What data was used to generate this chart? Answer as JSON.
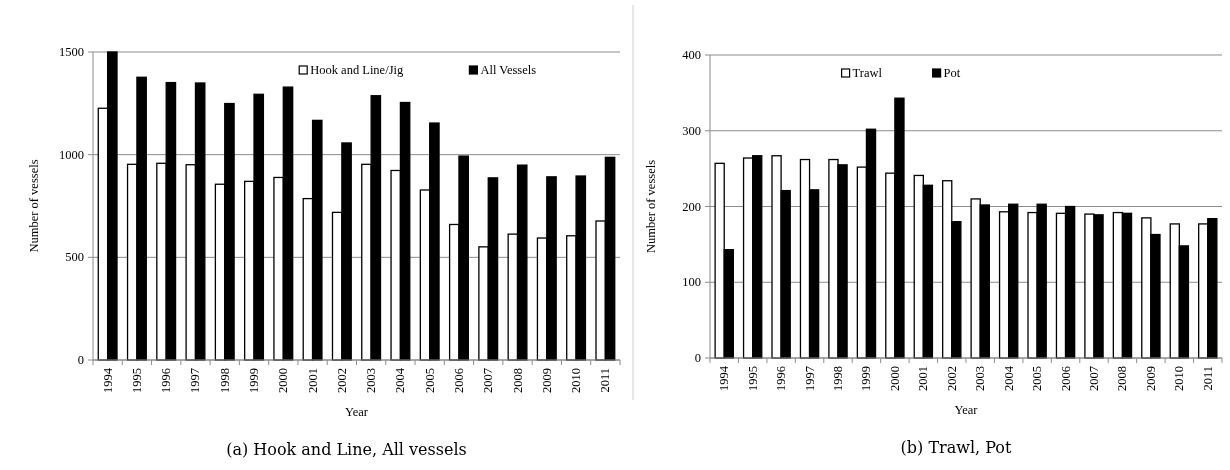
{
  "chart_data": [
    {
      "type": "bar",
      "xlabel": "Year",
      "ylabel": "Number of vessels",
      "categories": [
        "1994",
        "1995",
        "1996",
        "1997",
        "1998",
        "1999",
        "2000",
        "2001",
        "2002",
        "2003",
        "2004",
        "2005",
        "2006",
        "2007",
        "2008",
        "2009",
        "2010",
        "2011"
      ],
      "series": [
        {
          "name": "Hook and Line/Jig",
          "color": "#ffffff",
          "values": [
            1226,
            953,
            958,
            951,
            856,
            870,
            889,
            786,
            719,
            953,
            923,
            828,
            660,
            551,
            613,
            594,
            605,
            677
          ]
        },
        {
          "name": "All Vessels",
          "color": "#000000",
          "values": [
            1500,
            1377,
            1351,
            1349,
            1249,
            1294,
            1329,
            1167,
            1057,
            1287,
            1254,
            1154,
            993,
            887,
            949,
            892,
            896,
            987
          ]
        }
      ],
      "ylim": [
        0,
        1500
      ],
      "yticks": [
        0,
        500,
        1000,
        1500
      ],
      "grid": "y",
      "legend": "top right",
      "annotations": [
        "(a) Hook and Line, All vessels"
      ]
    },
    {
      "type": "bar",
      "xlabel": "Year",
      "ylabel": "Number of vessels",
      "categories": [
        "1994",
        "1995",
        "1996",
        "1997",
        "1998",
        "1999",
        "2000",
        "2001",
        "2002",
        "2003",
        "2004",
        "2005",
        "2006",
        "2007",
        "2008",
        "2009",
        "2010",
        "2011"
      ],
      "series": [
        {
          "name": "Trawl",
          "color": "#ffffff",
          "values": [
            257,
            264,
            267,
            262,
            262,
            252,
            244,
            241,
            234,
            210,
            193,
            192,
            191,
            190,
            192,
            185,
            177,
            177
          ]
        },
        {
          "name": "Pot",
          "color": "#000000",
          "values": [
            143,
            267,
            221,
            222,
            255,
            302,
            343,
            228,
            180,
            202,
            203,
            203,
            200,
            189,
            191,
            163,
            148,
            184
          ]
        }
      ],
      "ylim": [
        0,
        400
      ],
      "yticks": [
        0,
        100,
        200,
        300,
        400
      ],
      "grid": "y",
      "legend": "top",
      "annotations": [
        "(b) Trawl, Pot"
      ]
    }
  ]
}
